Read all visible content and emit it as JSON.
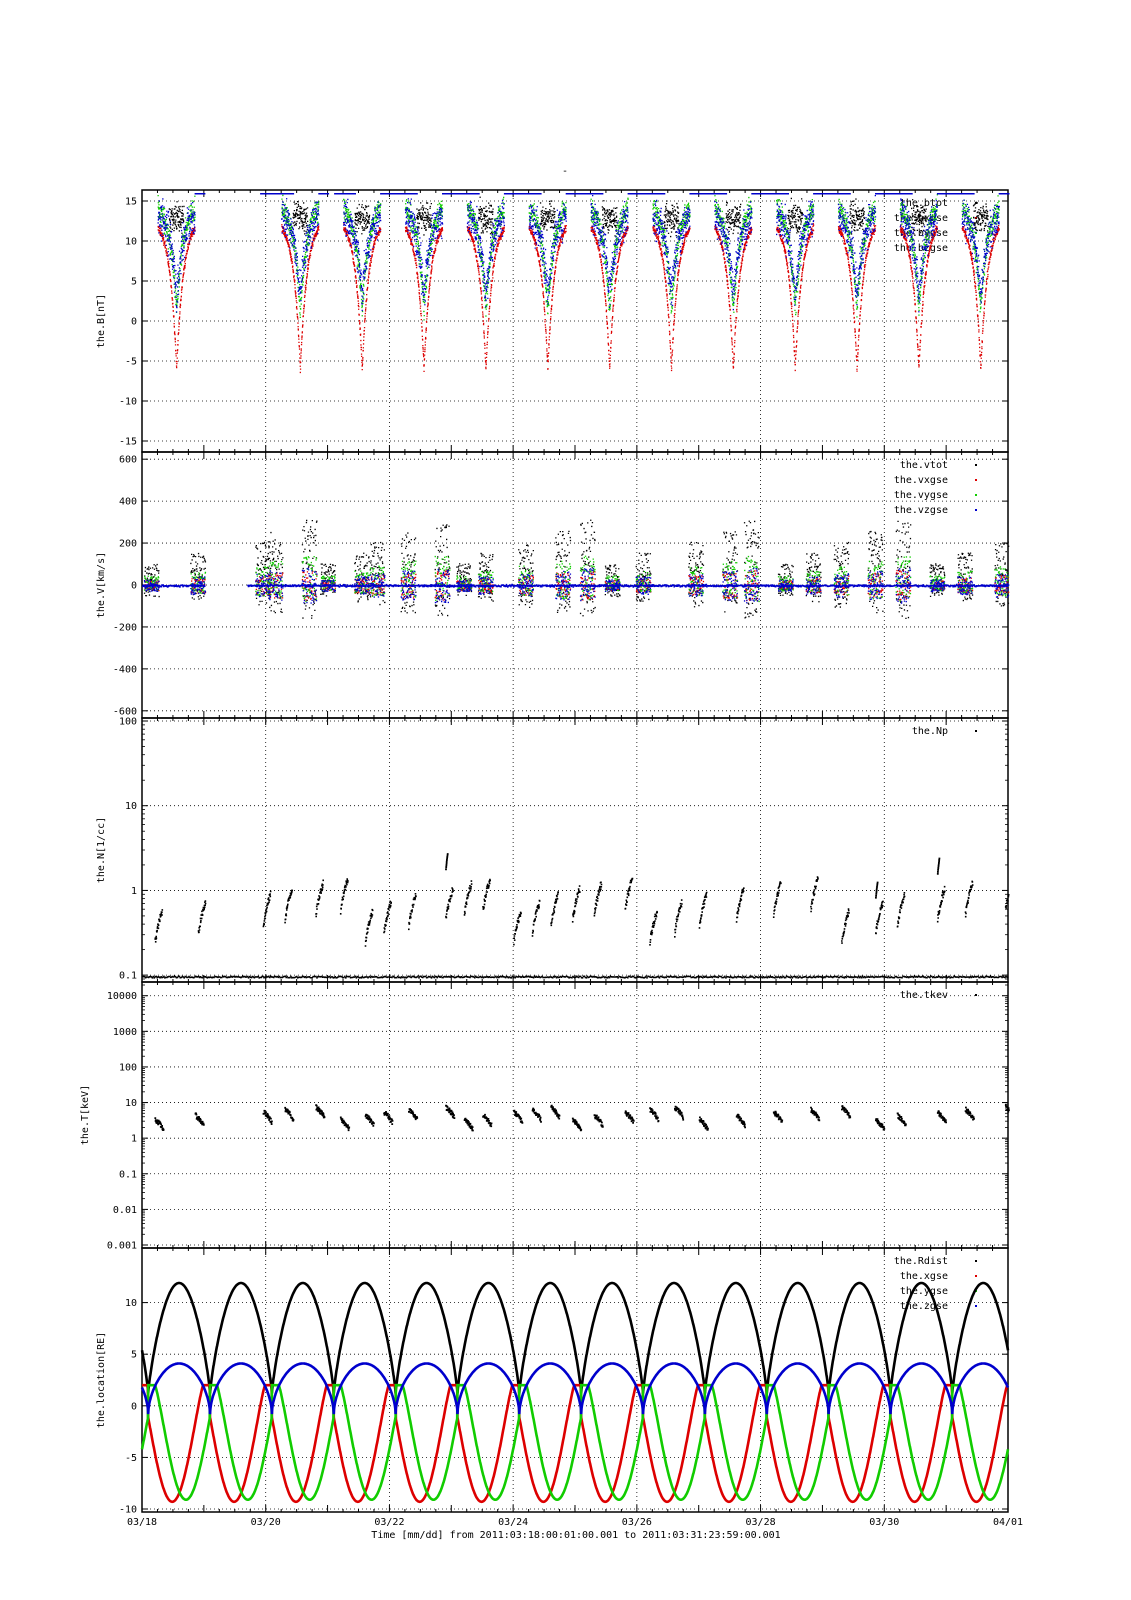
{
  "chart_data": {
    "type": "scatter",
    "top_title": "-",
    "xlabel": "Time [mm/dd]  from 2011:03:18:00:01:00.001  to  2011:03:31:23:59:00.001",
    "x_ticks": [
      "03/18",
      "03/20",
      "03/22",
      "03/24",
      "03/26",
      "03/28",
      "03/30",
      "04/01"
    ],
    "xlim_days": [
      0,
      14
    ],
    "colors": {
      "black": "#000000",
      "red": "#dd0000",
      "green": "#11cc00",
      "blue": "#0000cc"
    },
    "panels": [
      {
        "id": "B",
        "ylabel": "the.B[nT]",
        "scale": "linear",
        "ylim": [
          -16,
          16
        ],
        "y_ticks": [
          -15,
          -10,
          -5,
          0,
          5,
          10,
          15
        ],
        "y_tick_labels": [
          "-15",
          "-10",
          "-5",
          "0",
          "5",
          "10",
          "15"
        ],
        "legend": [
          "the.btot",
          "the.bxgse",
          "the.bygse",
          "the.bzgse"
        ],
        "legend_colors": [
          "black",
          "red",
          "green",
          "blue"
        ],
        "data_gaps_days": [
          [
            1.0,
            1.9
          ],
          [
            3.0,
            3.1
          ]
        ]
      },
      {
        "id": "V",
        "ylabel": "the.V[km/s]",
        "scale": "linear",
        "ylim": [
          -620,
          620
        ],
        "y_ticks": [
          -600,
          -400,
          -200,
          0,
          200,
          400,
          600
        ],
        "y_tick_labels": [
          "-600",
          "-400",
          "-200",
          "0",
          "200",
          "400",
          "600"
        ],
        "legend": [
          "the.vtot",
          "the.vxgse",
          "the.vygse",
          "the.vzgse"
        ],
        "legend_colors": [
          "black",
          "red",
          "green",
          "blue"
        ]
      },
      {
        "id": "N",
        "ylabel": "the.N[1/cc]",
        "scale": "log",
        "ylim": [
          0.09,
          100
        ],
        "y_ticks": [
          0.1,
          1,
          10,
          100
        ],
        "y_tick_labels": [
          "0.1",
          "1",
          "10",
          "100"
        ],
        "legend": [
          "the.Np"
        ],
        "legend_colors": [
          "black"
        ],
        "notable_values": [
          {
            "day": 4.9,
            "value": 2.6
          },
          {
            "day": 12.85,
            "value": 2.3
          },
          {
            "day": 11.85,
            "value": 1.2
          }
        ]
      },
      {
        "id": "T",
        "ylabel": "the.T[keV]",
        "scale": "log",
        "ylim": [
          0.001,
          20000
        ],
        "y_ticks": [
          0.001,
          0.01,
          0.1,
          1,
          10,
          100,
          1000,
          10000
        ],
        "y_tick_labels": [
          "0.001",
          "0.01",
          "0.1",
          "1",
          "10",
          "100",
          "1000",
          "10000"
        ],
        "legend": [
          "the.tkev"
        ],
        "legend_colors": [
          "black"
        ]
      },
      {
        "id": "location",
        "ylabel": "the.location[RE]",
        "scale": "linear",
        "ylim": [
          -10,
          15
        ],
        "y_ticks": [
          -10,
          -5,
          0,
          5,
          10
        ],
        "y_tick_labels": [
          "-10",
          "-5",
          "0",
          "5",
          "10"
        ],
        "legend": [
          "the.Rdist",
          "the.xgse",
          "the.ygse",
          "the.zgse"
        ],
        "legend_colors": [
          "black",
          "red",
          "green",
          "blue"
        ],
        "orbit": {
          "period_days": 1.0,
          "first_perigee_day": 0.1,
          "perigee_re": 1.2,
          "apogee_re": 11.9,
          "x_min": -9.3,
          "x_max": 2.0,
          "y_min": -9.1,
          "y_max": 2.0,
          "z_min": -0.8,
          "z_max": 4.1
        }
      }
    ]
  }
}
